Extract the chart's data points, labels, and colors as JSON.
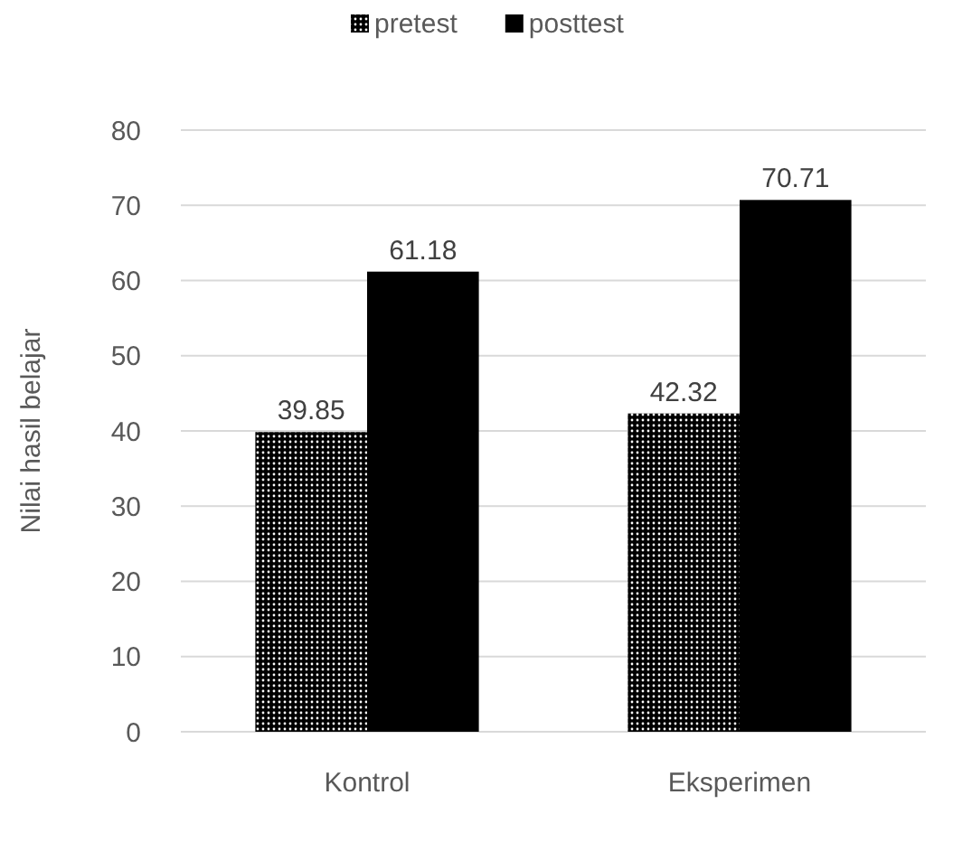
{
  "chart_data": {
    "type": "bar",
    "ylabel": "Nilai hasil belajar",
    "categories": [
      "Kontrol",
      "Eksperimen"
    ],
    "series": [
      {
        "name": "pretest",
        "color": "#000000",
        "values": [
          39.85,
          42.32
        ]
      },
      {
        "name": "posttest",
        "color": "#000000",
        "values": [
          61.18,
          70.71
        ]
      }
    ],
    "ylim": [
      0,
      80
    ],
    "yticks": [
      0,
      10,
      20,
      30,
      40,
      50,
      60,
      70,
      80
    ],
    "grid": "y",
    "legend": "top",
    "data_labels": true
  }
}
